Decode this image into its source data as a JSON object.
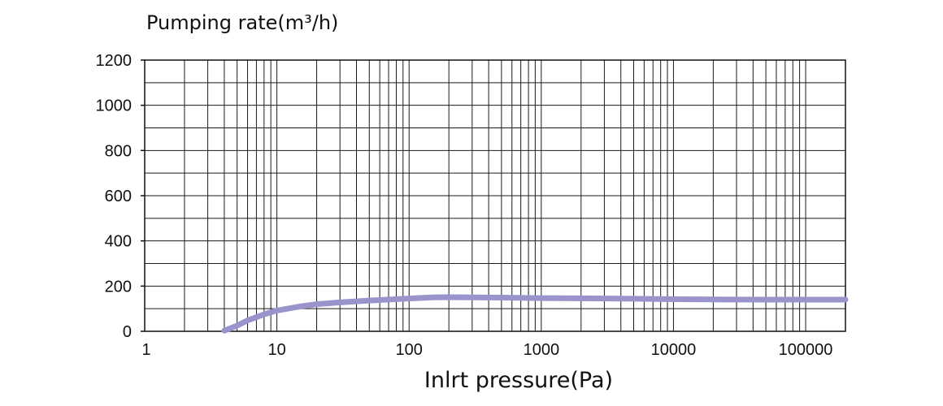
{
  "chart_data": {
    "type": "line",
    "title": "",
    "ylabel": "Pumping rate(m³/h)",
    "xlabel": "Inlrt pressure(Pa)",
    "xscale": "log",
    "xlim": [
      1,
      200000
    ],
    "ylim": [
      0,
      1200
    ],
    "grid": true,
    "x_ticks": [
      "1",
      "10",
      "100",
      "1000",
      "10000",
      "100000"
    ],
    "y_ticks": [
      "0",
      "200",
      "400",
      "600",
      "800",
      "1000",
      "1200"
    ],
    "line_color": "#9a94cc",
    "series": [
      {
        "x": [
          4,
          5,
          6,
          8,
          10,
          15,
          20,
          30,
          50,
          100,
          150,
          200,
          300,
          500,
          1000,
          2000,
          5000,
          10000,
          20000,
          50000,
          100000,
          200000
        ],
        "y": [
          3,
          25,
          48,
          75,
          92,
          110,
          120,
          128,
          136,
          145,
          150,
          151,
          150,
          149,
          147,
          146,
          144,
          142,
          141,
          140,
          140,
          140
        ]
      }
    ]
  }
}
